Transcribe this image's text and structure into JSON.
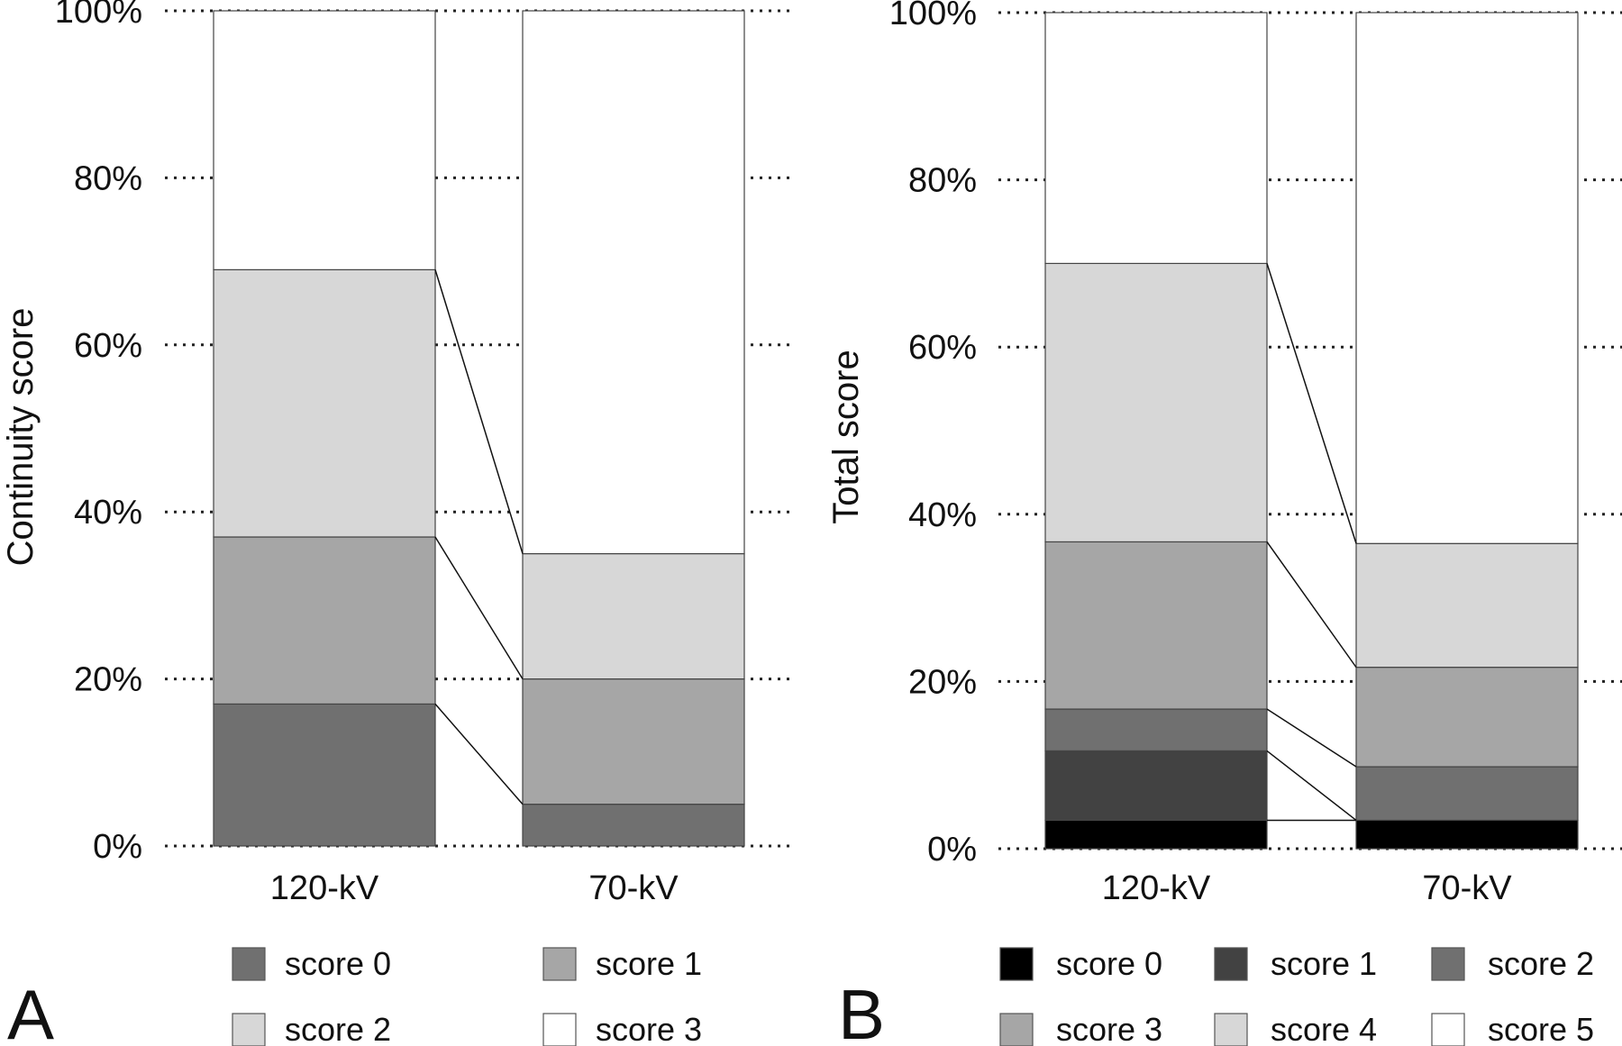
{
  "chart_data": [
    {
      "panel": "A",
      "type": "bar",
      "stacked": true,
      "normalized": true,
      "ylabel": "Continuity score",
      "xlabel": "",
      "categories": [
        "120-kV",
        "70-kV"
      ],
      "yticks": [
        "0%",
        "20%",
        "40%",
        "60%",
        "80%",
        "100%"
      ],
      "ylim": [
        0,
        100
      ],
      "grid": "horizontal dotted",
      "connector_lines": true,
      "legend_position": "bottom",
      "series": [
        {
          "name": "score 0",
          "color": "#707070",
          "values": [
            17,
            5
          ]
        },
        {
          "name": "score 1",
          "color": "#a6a6a6",
          "values": [
            20,
            15
          ]
        },
        {
          "name": "score 2",
          "color": "#d7d7d7",
          "values": [
            32,
            15
          ]
        },
        {
          "name": "score 3",
          "color": "#ffffff",
          "values": [
            31,
            65
          ]
        }
      ]
    },
    {
      "panel": "B",
      "type": "bar",
      "stacked": true,
      "normalized": true,
      "ylabel": "Total score",
      "xlabel": "",
      "categories": [
        "120-kV",
        "70-kV"
      ],
      "yticks": [
        "0%",
        "20%",
        "40%",
        "60%",
        "80%",
        "100%"
      ],
      "ylim": [
        0,
        100
      ],
      "grid": "horizontal dotted",
      "connector_lines": true,
      "legend_position": "bottom",
      "series": [
        {
          "name": "score 0",
          "color": "#000000",
          "values": [
            3.4,
            3.4
          ]
        },
        {
          "name": "score 1",
          "color": "#424242",
          "values": [
            8.3,
            0
          ]
        },
        {
          "name": "score 2",
          "color": "#707070",
          "values": [
            5,
            6.4
          ]
        },
        {
          "name": "score 3",
          "color": "#a6a6a6",
          "values": [
            20,
            11.9
          ]
        },
        {
          "name": "score 4",
          "color": "#d7d7d7",
          "values": [
            33.3,
            14.8
          ]
        },
        {
          "name": "score 5",
          "color": "#ffffff",
          "values": [
            30,
            63.5
          ]
        }
      ]
    }
  ]
}
